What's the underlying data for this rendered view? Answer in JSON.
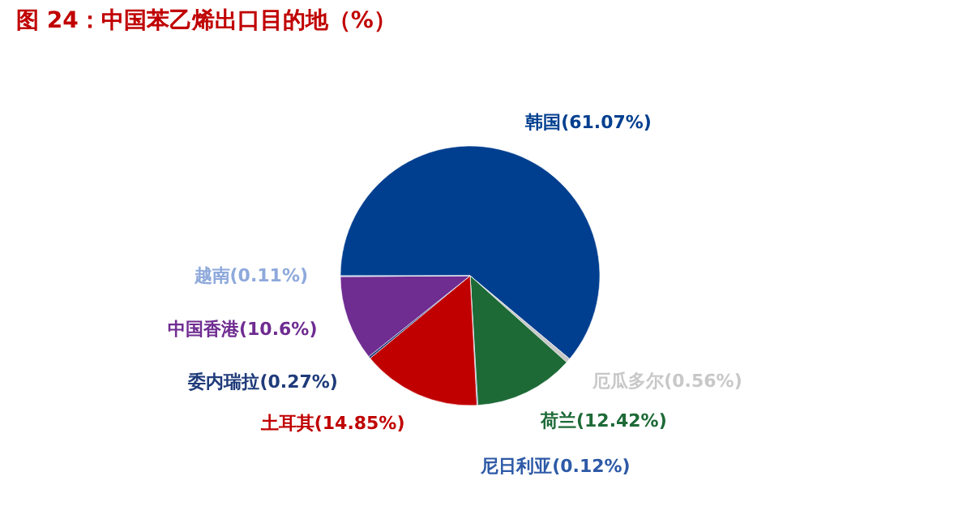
{
  "chart_data": {
    "type": "pie",
    "title": "图 24：中国苯乙烯出口目的地（%）",
    "categories": [
      "韩国",
      "厄瓜多尔",
      "荷兰",
      "尼日利亚",
      "土耳其",
      "委内瑞拉",
      "中国香港",
      "越南"
    ],
    "values": [
      61.07,
      0.56,
      12.42,
      0.12,
      14.85,
      0.27,
      10.6,
      0.11
    ],
    "colors": [
      "#003f8f",
      "#c8c8c8",
      "#1d6a37",
      "#2e5aa7",
      "#c00000",
      "#1f3b7a",
      "#6f2c91",
      "#8ea9db"
    ],
    "value_labels": [
      "(61.07%)",
      "(0.56%)",
      "(12.42%)",
      "(0.12%)",
      "(14.85%)",
      "(0.27%)",
      "(10.6%)",
      "(0.11%)"
    ]
  }
}
